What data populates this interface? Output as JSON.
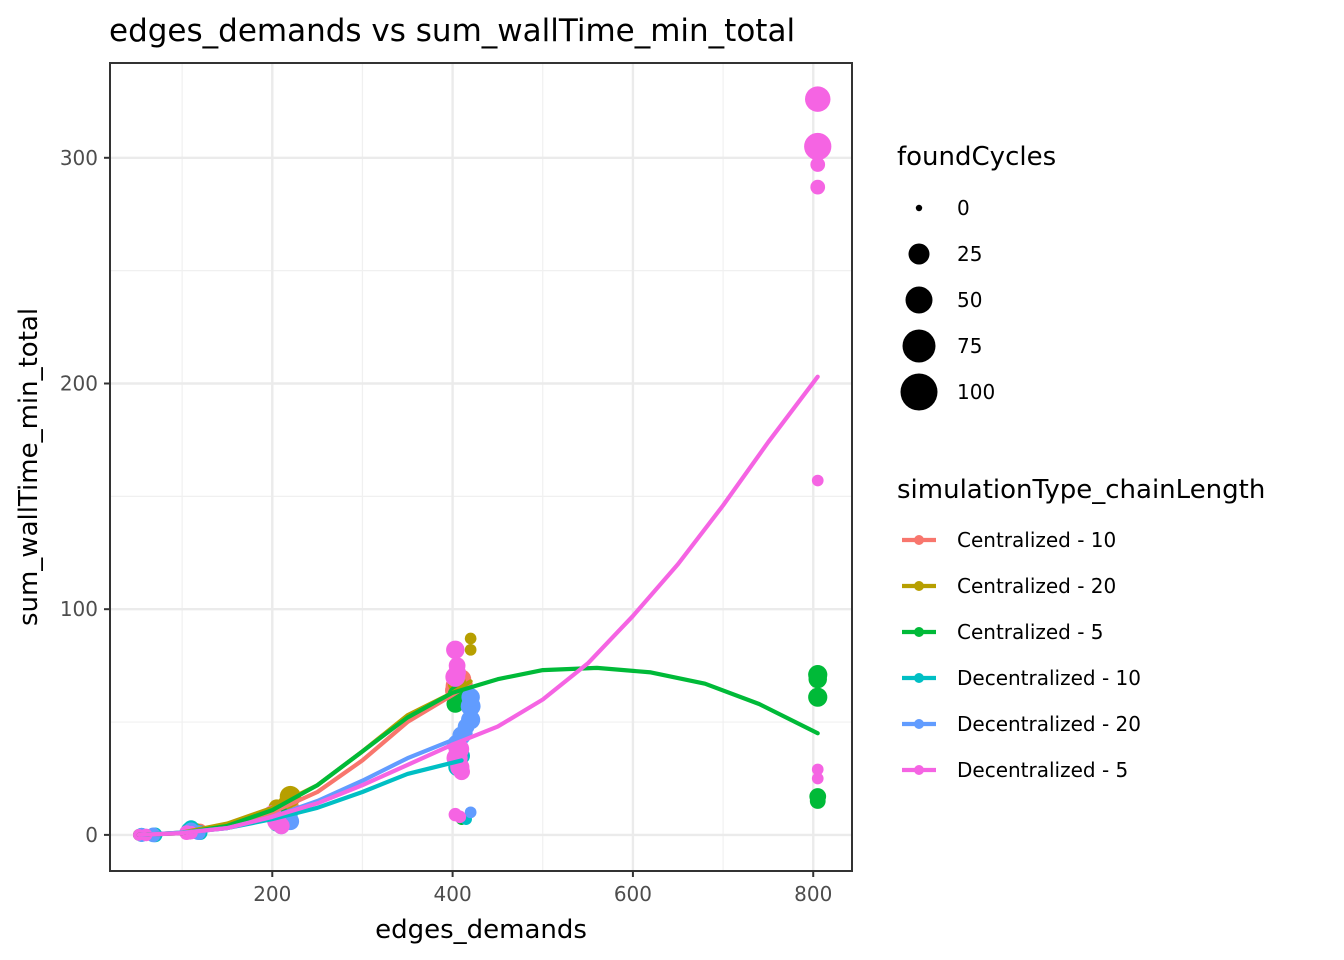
{
  "chart_data": {
    "type": "scatter",
    "title": "edges_demands  vs  sum_wallTime_min_total",
    "xlabel": "edges_demands",
    "ylabel": "sum_wallTime_min_total",
    "xlim": [
      20,
      843
    ],
    "ylim": [
      -16,
      342
    ],
    "x_ticks": [
      200,
      400,
      600,
      800
    ],
    "y_ticks": [
      0,
      100,
      200,
      300
    ],
    "x_tick_labels": [
      "200",
      "400",
      "600",
      "800"
    ],
    "y_tick_labels": [
      "0",
      "100",
      "200",
      "300"
    ],
    "grid": true,
    "legend_position": "right",
    "size_legend": {
      "title": "foundCycles",
      "values": [
        0,
        25,
        50,
        75,
        100
      ],
      "labels": [
        "0",
        "25",
        "50",
        "75",
        "100"
      ]
    },
    "color_legend": {
      "title": "simulationType_chainLength"
    },
    "series": [
      {
        "name": "Centralized - 10",
        "color": "#F8766D",
        "points": [
          [
            52,
            0,
            2
          ],
          [
            62,
            0,
            2
          ],
          [
            70,
            0,
            3
          ],
          [
            105,
            1,
            3
          ],
          [
            110,
            2,
            6
          ],
          [
            120,
            2,
            4
          ],
          [
            200,
            9,
            8
          ],
          [
            205,
            11,
            10
          ],
          [
            210,
            10,
            6
          ],
          [
            220,
            12,
            12
          ],
          [
            403,
            64,
            20
          ],
          [
            405,
            66,
            28
          ],
          [
            410,
            69,
            16
          ],
          [
            415,
            62,
            12
          ]
        ],
        "smooth": [
          [
            52,
            0
          ],
          [
            100,
            0.8
          ],
          [
            150,
            4
          ],
          [
            200,
            10
          ],
          [
            250,
            19
          ],
          [
            300,
            33
          ],
          [
            350,
            50
          ],
          [
            400,
            62
          ],
          [
            420,
            67
          ]
        ]
      },
      {
        "name": "Centralized - 20",
        "color": "#B79F00",
        "points": [
          [
            55,
            0,
            2
          ],
          [
            65,
            0,
            2
          ],
          [
            108,
            1,
            4
          ],
          [
            115,
            2,
            6
          ],
          [
            205,
            12,
            10
          ],
          [
            215,
            14,
            8
          ],
          [
            220,
            17,
            22
          ],
          [
            405,
            67,
            14
          ],
          [
            410,
            63,
            12
          ],
          [
            420,
            60,
            10
          ],
          [
            420,
            82,
            2
          ],
          [
            420,
            87,
            2
          ]
        ],
        "smooth": [
          [
            55,
            0
          ],
          [
            100,
            1
          ],
          [
            150,
            5
          ],
          [
            200,
            12
          ],
          [
            250,
            22
          ],
          [
            300,
            37
          ],
          [
            350,
            53
          ],
          [
            400,
            63
          ],
          [
            420,
            68
          ]
        ]
      },
      {
        "name": "Centralized - 5",
        "color": "#00BA38",
        "points": [
          [
            52,
            0,
            2
          ],
          [
            60,
            0,
            2
          ],
          [
            108,
            1,
            4
          ],
          [
            115,
            1,
            3
          ],
          [
            205,
            8,
            6
          ],
          [
            210,
            9,
            8
          ],
          [
            403,
            58,
            12
          ],
          [
            405,
            62,
            16
          ],
          [
            405,
            81,
            2
          ],
          [
            410,
            60,
            10
          ],
          [
            410,
            7,
            2
          ],
          [
            805,
            71,
            16
          ],
          [
            805,
            69,
            14
          ],
          [
            805,
            61,
            16
          ],
          [
            805,
            17,
            10
          ],
          [
            805,
            15,
            8
          ]
        ],
        "smooth": [
          [
            52,
            0
          ],
          [
            100,
            0.8
          ],
          [
            150,
            4
          ],
          [
            200,
            11
          ],
          [
            250,
            22
          ],
          [
            300,
            37
          ],
          [
            350,
            52
          ],
          [
            400,
            63
          ],
          [
            450,
            69
          ],
          [
            500,
            73
          ],
          [
            560,
            74
          ],
          [
            620,
            72
          ],
          [
            680,
            67
          ],
          [
            740,
            58
          ],
          [
            805,
            45
          ]
        ]
      },
      {
        "name": "Decentralized - 10",
        "color": "#00BFC4",
        "points": [
          [
            55,
            0,
            5
          ],
          [
            70,
            0,
            6
          ],
          [
            108,
            2,
            10
          ],
          [
            110,
            3,
            8
          ],
          [
            120,
            1,
            6
          ],
          [
            205,
            5,
            8
          ],
          [
            210,
            6,
            10
          ],
          [
            220,
            8,
            6
          ],
          [
            405,
            30,
            12
          ],
          [
            410,
            35,
            10
          ],
          [
            415,
            7,
            2
          ]
        ],
        "smooth": [
          [
            55,
            0
          ],
          [
            100,
            1
          ],
          [
            150,
            3
          ],
          [
            200,
            7
          ],
          [
            250,
            12
          ],
          [
            300,
            19
          ],
          [
            350,
            27
          ],
          [
            410,
            33
          ]
        ]
      },
      {
        "name": "Decentralized - 20",
        "color": "#619CFF",
        "points": [
          [
            55,
            0,
            5
          ],
          [
            68,
            0,
            6
          ],
          [
            110,
            2,
            8
          ],
          [
            118,
            1,
            6
          ],
          [
            210,
            4,
            10
          ],
          [
            220,
            6,
            12
          ],
          [
            405,
            40,
            18
          ],
          [
            410,
            44,
            14
          ],
          [
            415,
            48,
            10
          ],
          [
            420,
            51,
            16
          ],
          [
            420,
            57,
            18
          ],
          [
            420,
            61,
            14
          ],
          [
            420,
            10,
            2
          ]
        ],
        "smooth": [
          [
            55,
            0
          ],
          [
            100,
            1
          ],
          [
            150,
            3
          ],
          [
            200,
            8
          ],
          [
            250,
            15
          ],
          [
            300,
            24
          ],
          [
            350,
            34
          ],
          [
            400,
            42
          ],
          [
            420,
            45
          ]
        ]
      },
      {
        "name": "Decentralized - 5",
        "color": "#F564E3",
        "points": [
          [
            52,
            0,
            2
          ],
          [
            60,
            0,
            3
          ],
          [
            105,
            1,
            6
          ],
          [
            110,
            1,
            4
          ],
          [
            200,
            9,
            14
          ],
          [
            205,
            6,
            16
          ],
          [
            210,
            4,
            10
          ],
          [
            403,
            82,
            14
          ],
          [
            403,
            70,
            18
          ],
          [
            405,
            75,
            10
          ],
          [
            405,
            72,
            12
          ],
          [
            407,
            38,
            20
          ],
          [
            405,
            34,
            22
          ],
          [
            408,
            30,
            16
          ],
          [
            410,
            28,
            10
          ],
          [
            403,
            9,
            4
          ],
          [
            408,
            8,
            3
          ],
          [
            805,
            326,
            38
          ],
          [
            805,
            305,
            46
          ],
          [
            805,
            297,
            6
          ],
          [
            805,
            287,
            6
          ],
          [
            805,
            157,
            2
          ],
          [
            805,
            29,
            2
          ],
          [
            805,
            25,
            2
          ]
        ],
        "smooth": [
          [
            52,
            0
          ],
          [
            100,
            0.8
          ],
          [
            150,
            3
          ],
          [
            200,
            8
          ],
          [
            250,
            14
          ],
          [
            300,
            22
          ],
          [
            350,
            31
          ],
          [
            400,
            40
          ],
          [
            450,
            48
          ],
          [
            500,
            60
          ],
          [
            550,
            76
          ],
          [
            600,
            97
          ],
          [
            650,
            120
          ],
          [
            700,
            146
          ],
          [
            750,
            174
          ],
          [
            805,
            203
          ]
        ]
      }
    ]
  }
}
